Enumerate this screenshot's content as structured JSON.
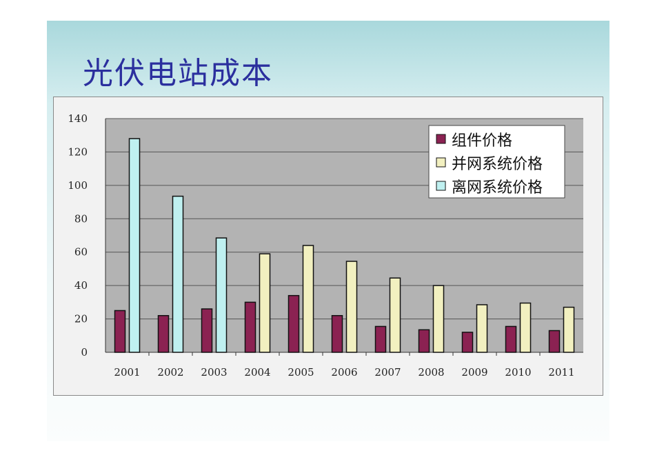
{
  "slide": {
    "title": "光伏电站成本"
  },
  "chart_data": {
    "type": "bar",
    "title": "",
    "xlabel": "",
    "ylabel": "",
    "categories": [
      "2001",
      "2002",
      "2003",
      "2004",
      "2005",
      "2006",
      "2007",
      "2008",
      "2009",
      "2010",
      "2011"
    ],
    "ylim": [
      0,
      140
    ],
    "yticks": [
      0,
      20,
      40,
      60,
      80,
      100,
      120,
      140
    ],
    "grid": true,
    "legend_position": "top-right",
    "plot_background": "#b3b3b3",
    "series": [
      {
        "name": "组件价格",
        "color": "#8b2252",
        "values": [
          25,
          22,
          26,
          30,
          34,
          22,
          15.5,
          13.5,
          12,
          15.5,
          13
        ]
      },
      {
        "name": "并网系统价格",
        "color": "#f2f0c0",
        "values": [
          null,
          null,
          null,
          59,
          64,
          54.5,
          44.5,
          40,
          28.5,
          29.5,
          27
        ]
      },
      {
        "name": "离网系统价格",
        "color": "#bff0f0",
        "values": [
          128,
          93.5,
          68.5,
          null,
          null,
          null,
          null,
          null,
          null,
          null,
          null
        ]
      }
    ]
  }
}
